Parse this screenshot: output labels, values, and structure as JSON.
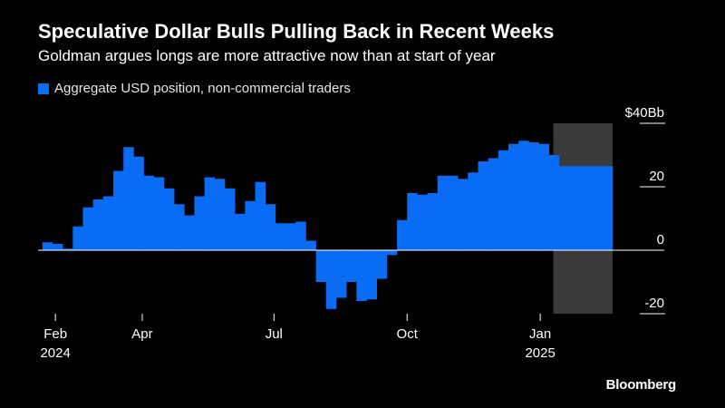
{
  "title": "Speculative Dollar Bulls Pulling Back in Recent Weeks",
  "subtitle": "Goldman argues longs are more attractive now than at start of year",
  "source": "Bloomberg",
  "colors": {
    "series": "#0a6cf5",
    "highlight": "#3a3a3a",
    "zero_line": "#ffffff",
    "text": "#ffffff"
  },
  "chart_data": {
    "type": "area",
    "step": true,
    "series": [
      {
        "name": "Aggregate USD position, non-commercial traders",
        "x": [
          "2024-01-23",
          "2024-01-30",
          "2024-02-06",
          "2024-02-13",
          "2024-02-20",
          "2024-02-27",
          "2024-03-05",
          "2024-03-12",
          "2024-03-19",
          "2024-03-26",
          "2024-04-02",
          "2024-04-09",
          "2024-04-16",
          "2024-04-23",
          "2024-04-30",
          "2024-05-07",
          "2024-05-14",
          "2024-05-21",
          "2024-05-28",
          "2024-06-04",
          "2024-06-11",
          "2024-06-18",
          "2024-06-25",
          "2024-07-02",
          "2024-07-09",
          "2024-07-16",
          "2024-07-23",
          "2024-07-30",
          "2024-08-06",
          "2024-08-13",
          "2024-08-20",
          "2024-08-27",
          "2024-09-03",
          "2024-09-10",
          "2024-09-17",
          "2024-09-24",
          "2024-10-01",
          "2024-10-08",
          "2024-10-15",
          "2024-10-22",
          "2024-10-29",
          "2024-11-05",
          "2024-11-12",
          "2024-11-19",
          "2024-11-26",
          "2024-12-03",
          "2024-12-10",
          "2024-12-17",
          "2024-12-24",
          "2024-12-31",
          "2025-01-07",
          "2025-01-14",
          "2025-01-21",
          "2025-01-28",
          "2025-02-04",
          "2025-02-11",
          "2025-02-18"
        ],
        "values": [
          2.5,
          2.0,
          0.5,
          7.5,
          13.5,
          16.0,
          17.0,
          25.0,
          32.5,
          29.5,
          23.5,
          23.0,
          19.5,
          14.5,
          11.0,
          17.0,
          23.0,
          22.5,
          19.5,
          11.5,
          15.5,
          21.5,
          14.5,
          8.5,
          8.5,
          9.0,
          3.0,
          -10.0,
          -18.5,
          -15.0,
          -10.0,
          -16.0,
          -15.5,
          -9.0,
          -1.5,
          9.5,
          18.0,
          17.5,
          18.0,
          23.5,
          23.5,
          22.5,
          24.5,
          28.0,
          29.0,
          31.5,
          33.5,
          34.5,
          34.0,
          33.5,
          30.0,
          26.5,
          26.5,
          26.5,
          26.5,
          26.5,
          26.5
        ]
      }
    ],
    "ylim": [
      -20,
      40
    ],
    "y_ticks": [
      {
        "value": 40,
        "label": "$40Bb"
      },
      {
        "value": 20,
        "label": "20"
      },
      {
        "value": 0,
        "label": "0"
      },
      {
        "value": -20,
        "label": "-20"
      }
    ],
    "x_ticks": [
      {
        "date": "2024-02-01",
        "label": "Feb",
        "sublabel": "2024"
      },
      {
        "date": "2024-04-01",
        "label": "Apr",
        "sublabel": ""
      },
      {
        "date": "2024-07-01",
        "label": "Jul",
        "sublabel": ""
      },
      {
        "date": "2024-10-01",
        "label": "Oct",
        "sublabel": ""
      },
      {
        "date": "2025-01-01",
        "label": "Jan",
        "sublabel": "2025"
      }
    ],
    "xlim": [
      "2024-01-20",
      "2025-02-20"
    ],
    "highlight_range": [
      "2025-01-10",
      "2025-02-20"
    ],
    "legend_position": "top-left",
    "grid": false,
    "xlabel": "",
    "ylabel": ""
  }
}
